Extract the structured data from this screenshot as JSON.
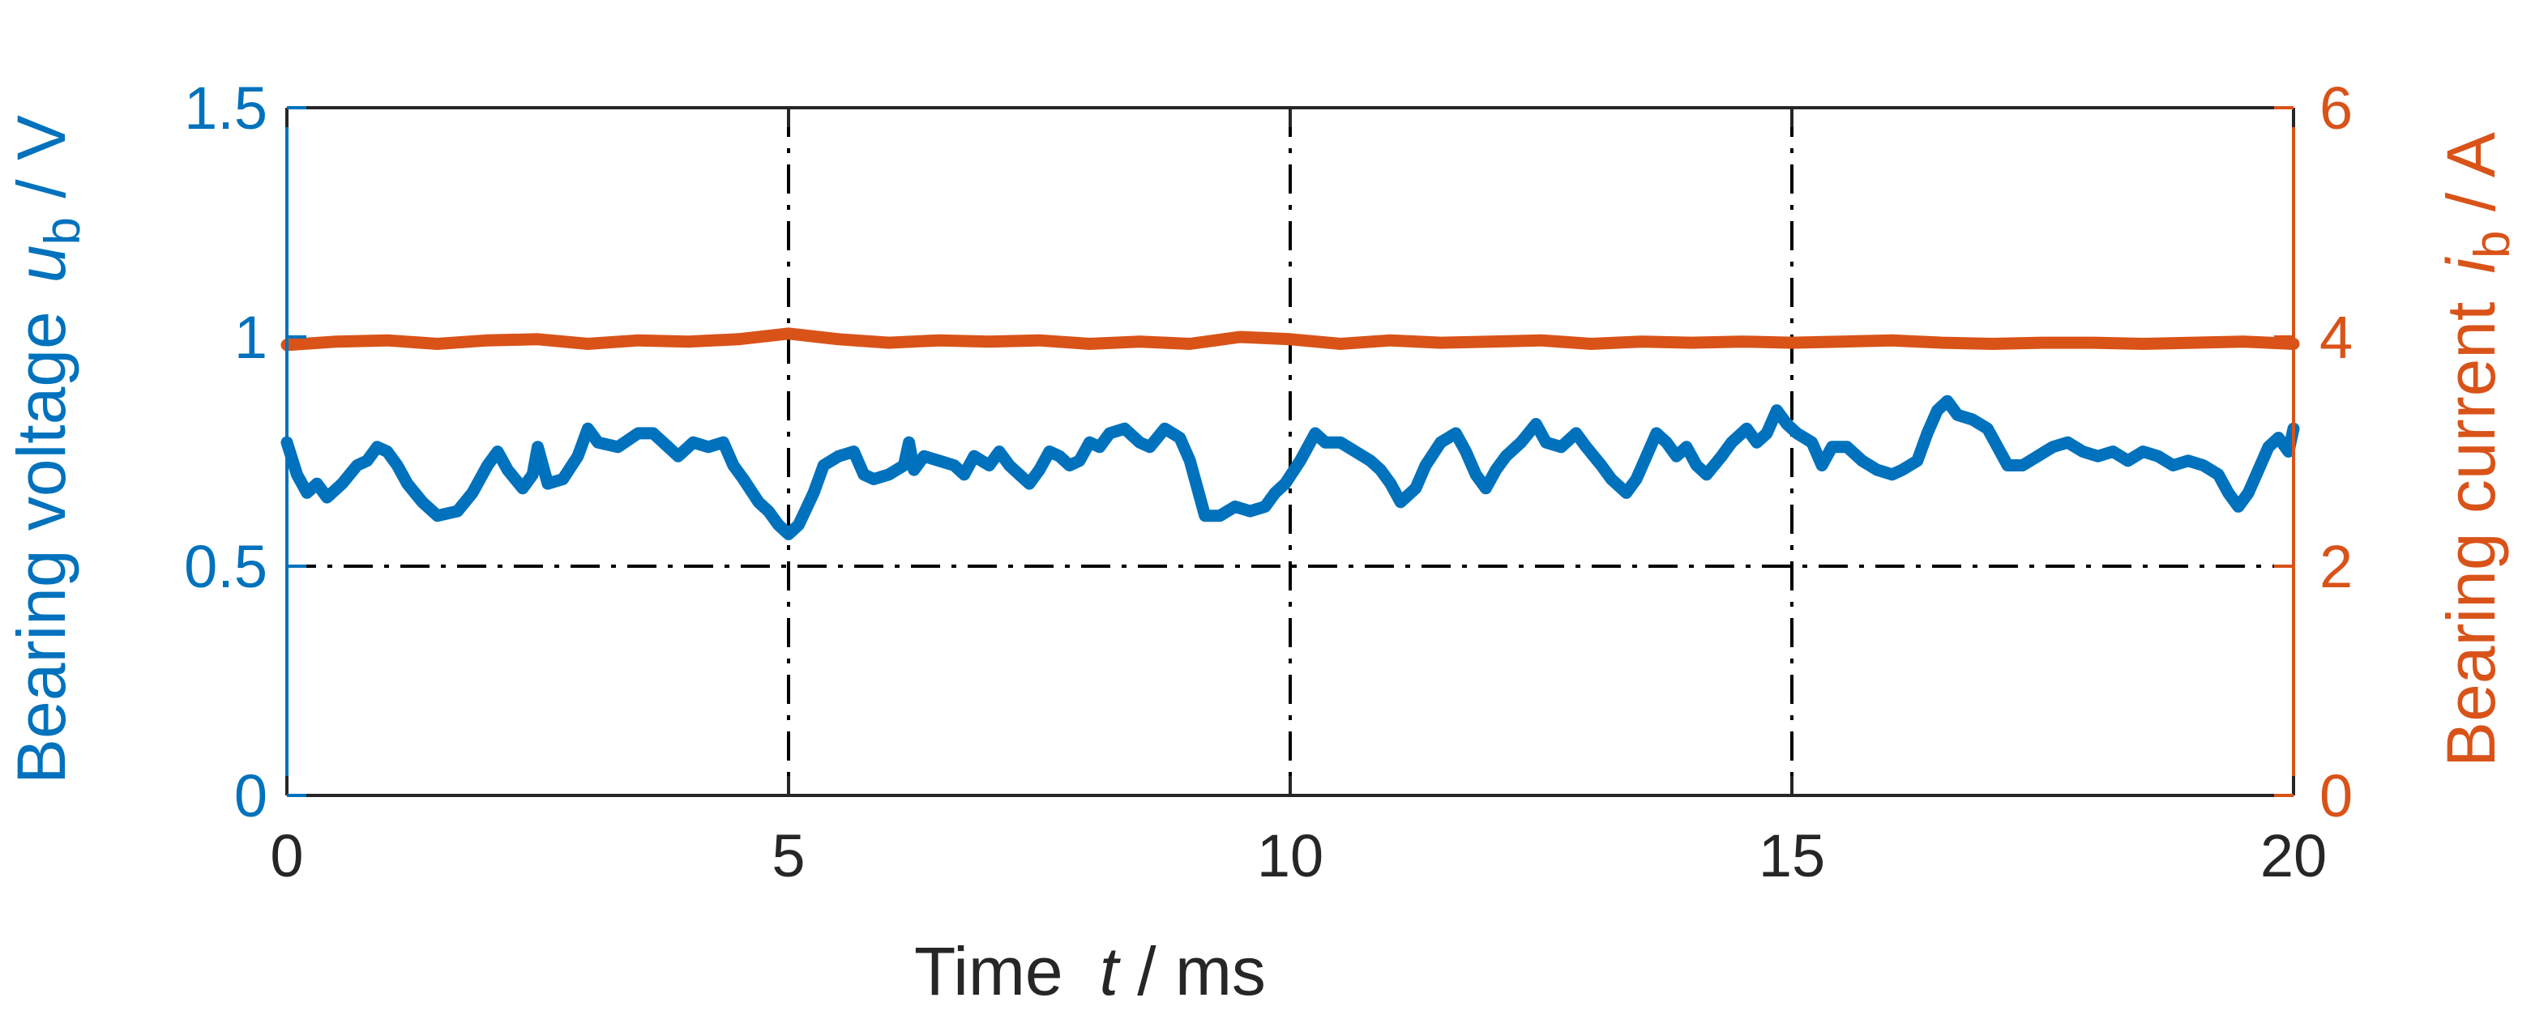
{
  "chart_data": {
    "type": "line",
    "xlabel": {
      "name": "Time",
      "var": "t",
      "unit": " / ms"
    },
    "ylabel_left": {
      "name": "Bearing voltage",
      "var": "u",
      "sub": "b",
      "unit": " / V"
    },
    "ylabel_right": {
      "name": "Bearing current",
      "var": "i",
      "sub": "b",
      "unit": " / A"
    },
    "xlim": [
      0,
      20
    ],
    "ylim_left": [
      0,
      1.5
    ],
    "ylim_right": [
      0,
      6
    ],
    "x_ticks": [
      "0",
      "5",
      "10",
      "15",
      "20"
    ],
    "y_ticks_left": [
      "0",
      "0.5",
      "1",
      "1.5"
    ],
    "y_ticks_right": [
      "0",
      "2",
      "4",
      "6"
    ],
    "grid": {
      "vertical_at_x": [
        5,
        10,
        15
      ],
      "horizontal_at_y_left": [
        0.5
      ],
      "style": "dash-dot"
    },
    "colors": {
      "left_axis": "#0072BD",
      "right_axis": "#D95319",
      "text": "#262626"
    },
    "series": [
      {
        "axis": "left",
        "color": "#0072BD",
        "points": [
          [
            0,
            0.77
          ],
          [
            0.1,
            0.7
          ],
          [
            0.2,
            0.66
          ],
          [
            0.3,
            0.68
          ],
          [
            0.4,
            0.65
          ],
          [
            0.55,
            0.68
          ],
          [
            0.7,
            0.72
          ],
          [
            0.8,
            0.73
          ],
          [
            0.9,
            0.76
          ],
          [
            1.0,
            0.75
          ],
          [
            1.1,
            0.72
          ],
          [
            1.2,
            0.68
          ],
          [
            1.35,
            0.64
          ],
          [
            1.5,
            0.61
          ],
          [
            1.7,
            0.62
          ],
          [
            1.85,
            0.66
          ],
          [
            2.0,
            0.72
          ],
          [
            2.1,
            0.75
          ],
          [
            2.2,
            0.71
          ],
          [
            2.35,
            0.67
          ],
          [
            2.45,
            0.7
          ],
          [
            2.5,
            0.76
          ],
          [
            2.55,
            0.72
          ],
          [
            2.6,
            0.68
          ],
          [
            2.75,
            0.69
          ],
          [
            2.9,
            0.74
          ],
          [
            3.0,
            0.8
          ],
          [
            3.1,
            0.77
          ],
          [
            3.3,
            0.76
          ],
          [
            3.5,
            0.79
          ],
          [
            3.65,
            0.79
          ],
          [
            3.8,
            0.76
          ],
          [
            3.9,
            0.74
          ],
          [
            4.05,
            0.77
          ],
          [
            4.2,
            0.76
          ],
          [
            4.35,
            0.77
          ],
          [
            4.45,
            0.72
          ],
          [
            4.55,
            0.69
          ],
          [
            4.7,
            0.64
          ],
          [
            4.8,
            0.62
          ],
          [
            4.9,
            0.59
          ],
          [
            5.0,
            0.57
          ],
          [
            5.1,
            0.59
          ],
          [
            5.25,
            0.66
          ],
          [
            5.35,
            0.72
          ],
          [
            5.5,
            0.74
          ],
          [
            5.65,
            0.75
          ],
          [
            5.75,
            0.7
          ],
          [
            5.85,
            0.69
          ],
          [
            6.0,
            0.7
          ],
          [
            6.15,
            0.72
          ],
          [
            6.2,
            0.77
          ],
          [
            6.25,
            0.71
          ],
          [
            6.35,
            0.74
          ],
          [
            6.5,
            0.73
          ],
          [
            6.65,
            0.72
          ],
          [
            6.75,
            0.7
          ],
          [
            6.85,
            0.74
          ],
          [
            7.0,
            0.72
          ],
          [
            7.1,
            0.75
          ],
          [
            7.2,
            0.72
          ],
          [
            7.3,
            0.7
          ],
          [
            7.4,
            0.68
          ],
          [
            7.5,
            0.71
          ],
          [
            7.6,
            0.75
          ],
          [
            7.7,
            0.74
          ],
          [
            7.8,
            0.72
          ],
          [
            7.9,
            0.73
          ],
          [
            8.0,
            0.77
          ],
          [
            8.1,
            0.76
          ],
          [
            8.2,
            0.79
          ],
          [
            8.35,
            0.8
          ],
          [
            8.5,
            0.77
          ],
          [
            8.6,
            0.76
          ],
          [
            8.75,
            0.8
          ],
          [
            8.9,
            0.78
          ],
          [
            9.0,
            0.73
          ],
          [
            9.1,
            0.65
          ],
          [
            9.15,
            0.61
          ],
          [
            9.3,
            0.61
          ],
          [
            9.45,
            0.63
          ],
          [
            9.6,
            0.62
          ],
          [
            9.75,
            0.63
          ],
          [
            9.85,
            0.66
          ],
          [
            9.95,
            0.68
          ],
          [
            10.1,
            0.73
          ],
          [
            10.25,
            0.79
          ],
          [
            10.35,
            0.77
          ],
          [
            10.5,
            0.77
          ],
          [
            10.65,
            0.75
          ],
          [
            10.8,
            0.73
          ],
          [
            10.9,
            0.71
          ],
          [
            11.0,
            0.68
          ],
          [
            11.1,
            0.64
          ],
          [
            11.25,
            0.67
          ],
          [
            11.35,
            0.72
          ],
          [
            11.5,
            0.77
          ],
          [
            11.65,
            0.79
          ],
          [
            11.75,
            0.75
          ],
          [
            11.85,
            0.7
          ],
          [
            11.95,
            0.67
          ],
          [
            12.05,
            0.71
          ],
          [
            12.15,
            0.74
          ],
          [
            12.3,
            0.77
          ],
          [
            12.45,
            0.81
          ],
          [
            12.55,
            0.77
          ],
          [
            12.7,
            0.76
          ],
          [
            12.85,
            0.79
          ],
          [
            12.95,
            0.76
          ],
          [
            13.1,
            0.72
          ],
          [
            13.2,
            0.69
          ],
          [
            13.35,
            0.66
          ],
          [
            13.45,
            0.69
          ],
          [
            13.55,
            0.74
          ],
          [
            13.65,
            0.79
          ],
          [
            13.75,
            0.77
          ],
          [
            13.85,
            0.74
          ],
          [
            13.95,
            0.76
          ],
          [
            14.05,
            0.72
          ],
          [
            14.15,
            0.7
          ],
          [
            14.3,
            0.74
          ],
          [
            14.4,
            0.77
          ],
          [
            14.55,
            0.8
          ],
          [
            14.65,
            0.77
          ],
          [
            14.75,
            0.79
          ],
          [
            14.85,
            0.84
          ],
          [
            14.95,
            0.81
          ],
          [
            15.05,
            0.79
          ],
          [
            15.2,
            0.77
          ],
          [
            15.3,
            0.72
          ],
          [
            15.4,
            0.76
          ],
          [
            15.55,
            0.76
          ],
          [
            15.7,
            0.73
          ],
          [
            15.85,
            0.71
          ],
          [
            16.0,
            0.7
          ],
          [
            16.1,
            0.71
          ],
          [
            16.25,
            0.73
          ],
          [
            16.35,
            0.79
          ],
          [
            16.45,
            0.84
          ],
          [
            16.55,
            0.86
          ],
          [
            16.65,
            0.83
          ],
          [
            16.8,
            0.82
          ],
          [
            16.95,
            0.8
          ],
          [
            17.05,
            0.76
          ],
          [
            17.15,
            0.72
          ],
          [
            17.3,
            0.72
          ],
          [
            17.45,
            0.74
          ],
          [
            17.6,
            0.76
          ],
          [
            17.75,
            0.77
          ],
          [
            17.9,
            0.75
          ],
          [
            18.05,
            0.74
          ],
          [
            18.2,
            0.75
          ],
          [
            18.35,
            0.73
          ],
          [
            18.5,
            0.75
          ],
          [
            18.65,
            0.74
          ],
          [
            18.8,
            0.72
          ],
          [
            18.95,
            0.73
          ],
          [
            19.1,
            0.72
          ],
          [
            19.25,
            0.7
          ],
          [
            19.35,
            0.66
          ],
          [
            19.45,
            0.63
          ],
          [
            19.55,
            0.66
          ],
          [
            19.65,
            0.71
          ],
          [
            19.75,
            0.76
          ],
          [
            19.85,
            0.78
          ],
          [
            19.95,
            0.75
          ],
          [
            20.0,
            0.8
          ]
        ]
      },
      {
        "axis": "right",
        "color": "#D95319",
        "points": [
          [
            0,
            3.93
          ],
          [
            0.5,
            3.96
          ],
          [
            1.0,
            3.97
          ],
          [
            1.5,
            3.94
          ],
          [
            2.0,
            3.97
          ],
          [
            2.5,
            3.98
          ],
          [
            3.0,
            3.94
          ],
          [
            3.5,
            3.97
          ],
          [
            4.0,
            3.96
          ],
          [
            4.5,
            3.98
          ],
          [
            5.0,
            4.03
          ],
          [
            5.5,
            3.98
          ],
          [
            6.0,
            3.95
          ],
          [
            6.5,
            3.97
          ],
          [
            7.0,
            3.96
          ],
          [
            7.5,
            3.97
          ],
          [
            8.0,
            3.94
          ],
          [
            8.5,
            3.96
          ],
          [
            9.0,
            3.94
          ],
          [
            9.5,
            4.0
          ],
          [
            10.0,
            3.98
          ],
          [
            10.5,
            3.94
          ],
          [
            11.0,
            3.97
          ],
          [
            11.5,
            3.95
          ],
          [
            12.0,
            3.96
          ],
          [
            12.5,
            3.97
          ],
          [
            13.0,
            3.94
          ],
          [
            13.5,
            3.96
          ],
          [
            14.0,
            3.95
          ],
          [
            14.5,
            3.96
          ],
          [
            15.0,
            3.95
          ],
          [
            15.5,
            3.96
          ],
          [
            16.0,
            3.97
          ],
          [
            16.5,
            3.95
          ],
          [
            17.0,
            3.94
          ],
          [
            17.5,
            3.95
          ],
          [
            18.0,
            3.95
          ],
          [
            18.5,
            3.94
          ],
          [
            19.0,
            3.95
          ],
          [
            19.5,
            3.96
          ],
          [
            20.0,
            3.94
          ]
        ]
      }
    ]
  }
}
